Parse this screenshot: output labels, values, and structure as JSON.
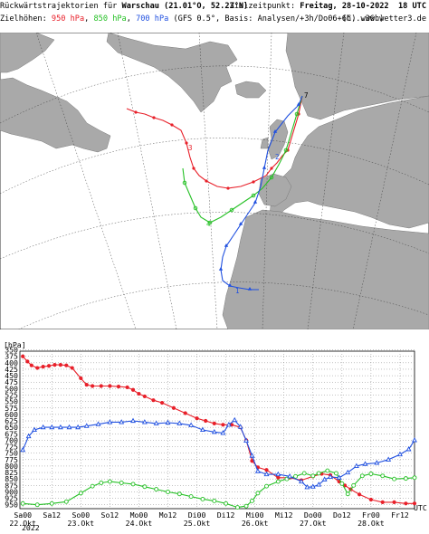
{
  "header": {
    "title_prefix": "Rückwärtstrajektorien für ",
    "title_location": "Warschau (21.01°O, 52.23°N)",
    "target_label": "Zielzeitpunkt: ",
    "target_time": "Freitag, 28-10-2022  18 UTC",
    "heights_label": "Zielhöhen: ",
    "level_950": "950 hPa",
    "level_850": "850 hPa",
    "level_700": "700 hPa",
    "basis_text": " (GFS 0.5°, Basis: Analysen/+3h/Do06+6h...36h)",
    "copyright": "(C) www.wetter3.de"
  },
  "colors": {
    "hPa950": "#e8202a",
    "hPa850": "#25c025",
    "hPa700": "#2050e0",
    "land": "#a9a9a9",
    "sea": "#ffffff"
  },
  "map": {
    "land_labels": [
      "4",
      "7",
      "2",
      "3",
      "1"
    ]
  },
  "chart_data": {
    "type": "line",
    "ylabel": "[hPa]",
    "y_ticks": [
      350,
      375,
      400,
      425,
      450,
      475,
      500,
      525,
      550,
      575,
      600,
      625,
      650,
      675,
      700,
      725,
      750,
      775,
      800,
      825,
      850,
      875,
      900,
      925,
      950
    ],
    "y_tick_labels": [
      "350",
      "375",
      "400",
      "425",
      "450",
      "475",
      "500",
      "525",
      "550",
      "575",
      "600",
      "625",
      "650",
      "675",
      "700",
      "725",
      "750",
      "775",
      "800",
      "825",
      "850",
      "875",
      "900",
      "925",
      "950"
    ],
    "ylim": [
      355,
      965
    ],
    "y_inverted": true,
    "x_ticks": [
      {
        "day": 0.0,
        "label": "Sa00"
      },
      {
        "day": 0.5,
        "label": "Sa12"
      },
      {
        "day": 1.0,
        "label": "So00"
      },
      {
        "day": 1.5,
        "label": "So12"
      },
      {
        "day": 2.0,
        "label": "Mo00"
      },
      {
        "day": 2.5,
        "label": "Mo12"
      },
      {
        "day": 3.0,
        "label": "Di00"
      },
      {
        "day": 3.5,
        "label": "Di12"
      },
      {
        "day": 4.0,
        "label": "Mi00"
      },
      {
        "day": 4.5,
        "label": "Mi12"
      },
      {
        "day": 5.0,
        "label": "Do00"
      },
      {
        "day": 5.5,
        "label": "Do12"
      },
      {
        "day": 6.0,
        "label": "Fr00"
      },
      {
        "day": 6.5,
        "label": "Fr12"
      }
    ],
    "date_labels": [
      {
        "day": 0.0,
        "label": "22.Okt"
      },
      {
        "day": 1.0,
        "label": "23.Okt"
      },
      {
        "day": 2.0,
        "label": "24.Okt"
      },
      {
        "day": 3.0,
        "label": "25.Okt"
      },
      {
        "day": 4.0,
        "label": "26.Okt"
      },
      {
        "day": 5.0,
        "label": "27.Okt"
      },
      {
        "day": 6.0,
        "label": "28.Okt"
      }
    ],
    "year_label": "2022",
    "utc_label": "UTC",
    "xlim": [
      -0.05,
      6.75
    ],
    "series": [
      {
        "name": "950 hPa",
        "color": "#e8202a",
        "x": [
          0.0,
          0.08,
          0.15,
          0.25,
          0.35,
          0.45,
          0.55,
          0.65,
          0.75,
          0.85,
          1.0,
          1.1,
          1.2,
          1.35,
          1.5,
          1.65,
          1.8,
          1.9,
          2.0,
          2.1,
          2.25,
          2.4,
          2.6,
          2.8,
          3.0,
          3.15,
          3.3,
          3.45,
          3.6,
          3.75,
          3.85,
          3.95,
          4.05,
          4.2,
          4.4,
          4.6,
          4.8,
          5.0,
          5.15,
          5.3,
          5.45,
          5.55,
          5.65,
          5.8,
          6.0,
          6.2,
          6.4,
          6.6,
          6.75
        ],
        "y": [
          375,
          395,
          410,
          420,
          415,
          412,
          408,
          408,
          410,
          420,
          460,
          485,
          490,
          490,
          490,
          492,
          495,
          505,
          520,
          530,
          545,
          555,
          575,
          595,
          615,
          625,
          635,
          640,
          640,
          650,
          700,
          780,
          805,
          815,
          845,
          845,
          855,
          840,
          830,
          835,
          860,
          875,
          890,
          910,
          930,
          940,
          940,
          945,
          945
        ]
      },
      {
        "name": "850 hPa",
        "color": "#25c025",
        "x": [
          0.0,
          0.25,
          0.5,
          0.75,
          1.0,
          1.2,
          1.35,
          1.5,
          1.7,
          1.9,
          2.1,
          2.3,
          2.5,
          2.7,
          2.9,
          3.1,
          3.3,
          3.5,
          3.7,
          3.85,
          3.95,
          4.05,
          4.2,
          4.4,
          4.55,
          4.7,
          4.85,
          5.0,
          5.1,
          5.25,
          5.4,
          5.5,
          5.6,
          5.7,
          5.85,
          6.0,
          6.2,
          6.4,
          6.6,
          6.75
        ],
        "y": [
          945,
          950,
          945,
          938,
          905,
          878,
          865,
          860,
          865,
          870,
          880,
          890,
          900,
          908,
          918,
          928,
          935,
          945,
          960,
          955,
          935,
          905,
          878,
          860,
          850,
          840,
          828,
          838,
          828,
          818,
          828,
          868,
          908,
          875,
          838,
          830,
          838,
          850,
          848,
          845
        ]
      },
      {
        "name": "700 hPa",
        "color": "#2050e0",
        "x": [
          0.0,
          0.1,
          0.2,
          0.35,
          0.5,
          0.65,
          0.8,
          0.95,
          1.1,
          1.3,
          1.5,
          1.7,
          1.9,
          2.1,
          2.3,
          2.5,
          2.7,
          2.9,
          3.1,
          3.3,
          3.45,
          3.55,
          3.65,
          3.75,
          3.85,
          3.95,
          4.05,
          4.2,
          4.4,
          4.6,
          4.8,
          4.9,
          5.0,
          5.1,
          5.2,
          5.3,
          5.45,
          5.6,
          5.75,
          5.9,
          6.1,
          6.3,
          6.5,
          6.65,
          6.75
        ],
        "y": [
          738,
          685,
          660,
          650,
          650,
          650,
          650,
          650,
          645,
          638,
          630,
          630,
          625,
          630,
          635,
          632,
          635,
          642,
          660,
          668,
          672,
          640,
          622,
          648,
          702,
          760,
          820,
          832,
          832,
          840,
          860,
          882,
          880,
          872,
          852,
          842,
          845,
          825,
          800,
          792,
          788,
          775,
          755,
          735,
          700
        ]
      }
    ]
  }
}
